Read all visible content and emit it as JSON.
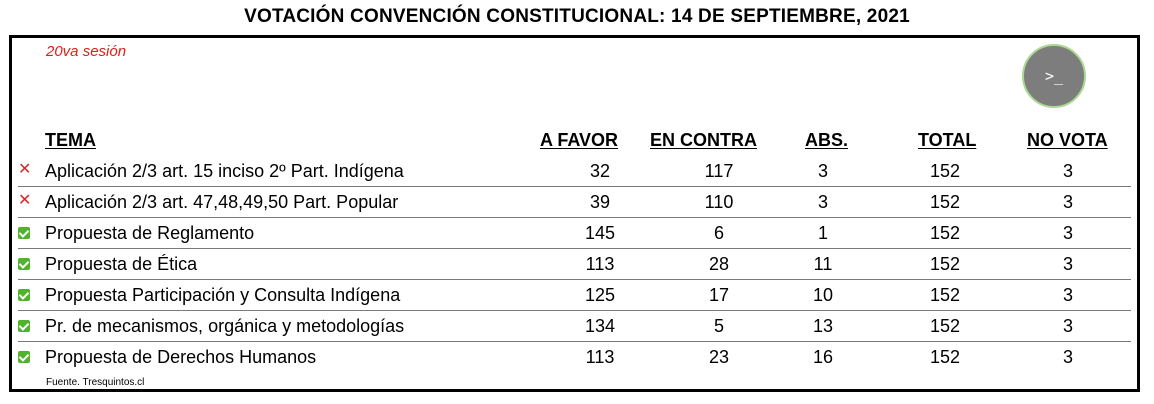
{
  "title": "VOTACIÓN CONVENCIÓN CONSTITUCIONAL: 14 DE SEPTIEMBRE, 2021",
  "session": "20va sesión",
  "terminal_button": {
    "icon": "terminal-icon",
    "glyph": ">_",
    "border_color": "#a9d98e"
  },
  "headers": {
    "tema": "TEMA",
    "a_favor": "A FAVOR",
    "en_contra": "EN CONTRA",
    "abs": "ABS.",
    "total": "TOTAL",
    "no_vota": "NO VOTA"
  },
  "status_colors": {
    "rejected": "#d8282a",
    "approved": "#4fb32b"
  },
  "rows": [
    {
      "status": "rejected",
      "tema": "Aplicación 2/3 art. 15 inciso 2º Part. Indígena",
      "a_favor": "32",
      "en_contra": "117",
      "abs": "3",
      "total": "152",
      "no_vota": "3"
    },
    {
      "status": "rejected",
      "tema": "Aplicación 2/3 art. 47,48,49,50 Part. Popular",
      "a_favor": "39",
      "en_contra": "110",
      "abs": "3",
      "total": "152",
      "no_vota": "3"
    },
    {
      "status": "approved",
      "tema": "Propuesta de Reglamento",
      "a_favor": "145",
      "en_contra": "6",
      "abs": "1",
      "total": "152",
      "no_vota": "3"
    },
    {
      "status": "approved",
      "tema": "Propuesta de Ética",
      "a_favor": "113",
      "en_contra": "28",
      "abs": "11",
      "total": "152",
      "no_vota": "3"
    },
    {
      "status": "approved",
      "tema": "Propuesta Participación y Consulta Indígena",
      "a_favor": "125",
      "en_contra": "17",
      "abs": "10",
      "total": "152",
      "no_vota": "3"
    },
    {
      "status": "approved",
      "tema": "Pr. de mecanismos, orgánica y metodologías",
      "a_favor": "134",
      "en_contra": "5",
      "abs": "13",
      "total": "152",
      "no_vota": "3"
    },
    {
      "status": "approved",
      "tema": "Propuesta de Derechos Humanos",
      "a_favor": "113",
      "en_contra": "23",
      "abs": "16",
      "total": "152",
      "no_vota": "3"
    }
  ],
  "source": "Fuente. Tresquintos.cl"
}
